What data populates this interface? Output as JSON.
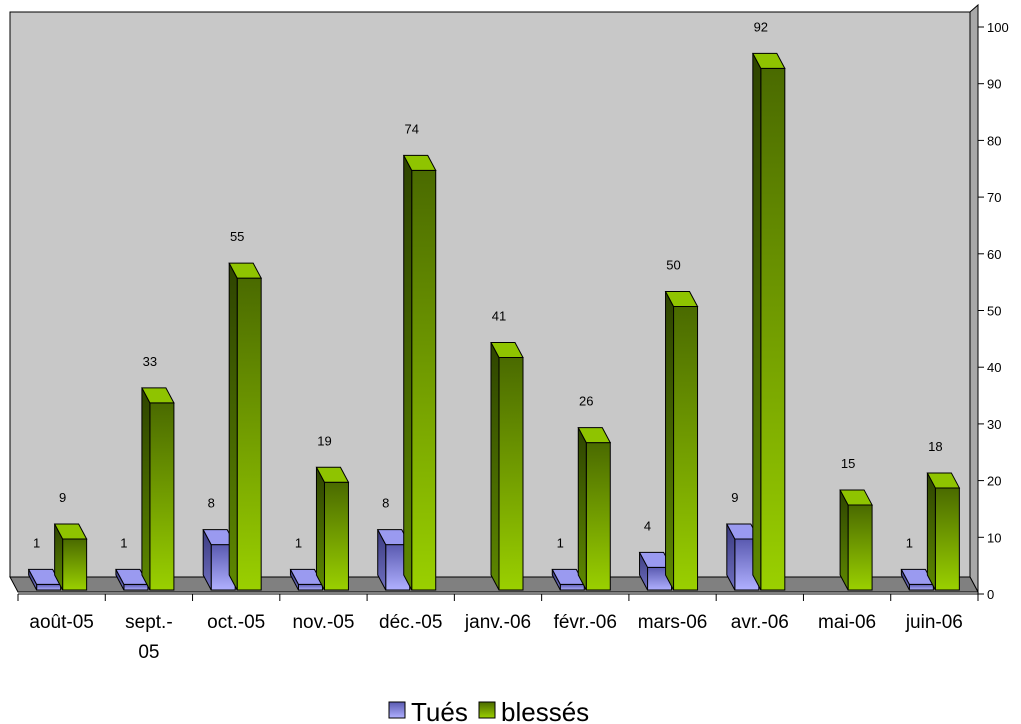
{
  "chart_data": {
    "type": "bar",
    "categories": [
      "août-05",
      "sept.-05",
      "oct.-05",
      "nov.-05",
      "déc.-05",
      "janv.-06",
      "févr.-06",
      "mars-06",
      "avr.-06",
      "mai-06",
      "juin-06"
    ],
    "series": [
      {
        "name": "Tués",
        "values": [
          1,
          1,
          8,
          1,
          8,
          null,
          1,
          4,
          9,
          null,
          1
        ],
        "color": "#8c8ce6"
      },
      {
        "name": "blessés",
        "values": [
          9,
          33,
          55,
          19,
          74,
          41,
          26,
          50,
          92,
          15,
          18
        ],
        "color": "#7ab800"
      }
    ],
    "y_ticks": [
      "0",
      "10",
      "20",
      "30",
      "40",
      "50",
      "60",
      "70",
      "80",
      "90",
      "100"
    ],
    "ylim": [
      0,
      100
    ],
    "y_axis_side": "right",
    "legend_position": "bottom",
    "grid": false,
    "wall_color": "#c8c8c8",
    "floor_color": "#808080"
  }
}
